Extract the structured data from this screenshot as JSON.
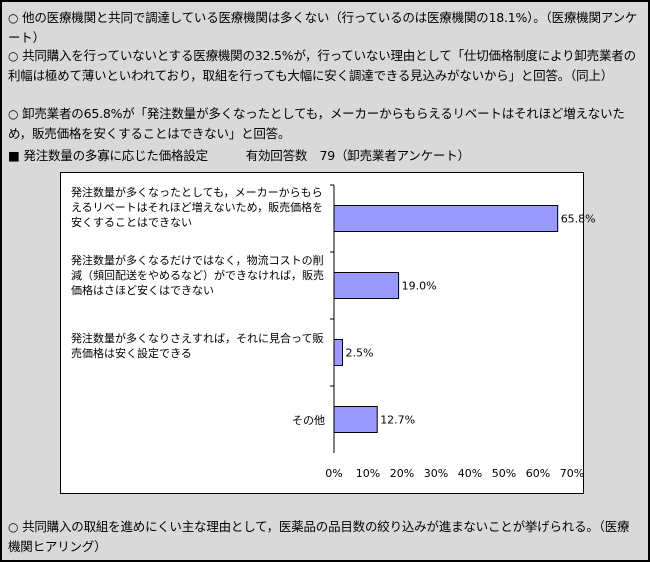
{
  "paragraphs": [
    {
      "bullet": "○",
      "text": "他の医療機関と共同で調達している医療機関は多くない（行っているのは医療機関の18.1%）。（医療機関アンケート）"
    },
    {
      "bullet": "○",
      "text": "共同購入を行っていないとする医療機関の32.5%が，行っていない理由として「仕切価格制度により卸売業者の利幅は極めて薄いといわれており，取組を行っても大幅に安く調達できる見込みがないから」と回答。（同上）"
    },
    {
      "bullet": "○",
      "text": "卸売業者の65.8%が「発注数量が多くなったとしても，メーカーからもらえるリベートはそれほど増えないため，販売価格を安くすることはできない」と回答。"
    }
  ],
  "section_heading": {
    "bullet": "■",
    "text": "発注数量の多寡に応じた価格設定",
    "note": "有効回答数　79（卸売業者アンケート）"
  },
  "footer": {
    "bullet": "○",
    "text": "共同購入の取組を進めにくい主な理由として，医薬品の品目数の絞り込みが進まないことが挙げられる。（医療機関ヒアリング）"
  },
  "chart_data": {
    "type": "bar",
    "orientation": "horizontal",
    "categories": [
      "発注数量が多くなったとしても，メーカーからもらえるリベートはそれほど増えないため，販売価格を安くすることはできない",
      "発注数量が多くなるだけではなく，物流コストの削減（頻回配送をやめるなど）ができなければ，販売価格はさほど安くはできない",
      "発注数量が多くなりさえすれば，それに見合って販売価格は安く設定できる",
      "その他"
    ],
    "values": [
      65.8,
      19.0,
      2.5,
      12.7
    ],
    "value_labels": [
      "65.8%",
      "19.0%",
      "2.5%",
      "12.7%"
    ],
    "xlim": [
      0,
      70
    ],
    "xticks": [
      "0%",
      "10%",
      "20%",
      "30%",
      "40%",
      "50%",
      "60%",
      "70%"
    ],
    "bar_color": "#9999ff",
    "grid": false
  }
}
